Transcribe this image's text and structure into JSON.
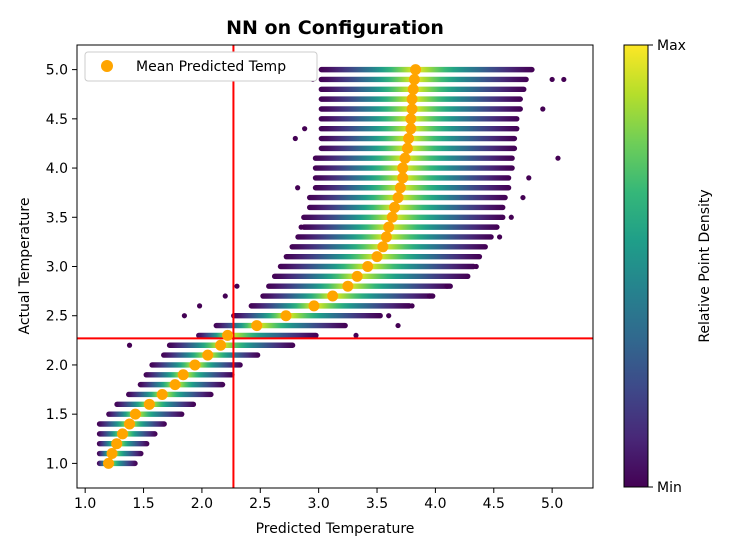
{
  "chart_data": {
    "type": "scatter",
    "title": "NN on Configuration",
    "xlabel": "Predicted Temperature",
    "ylabel": "Actual Temperature",
    "xlim": [
      0.93,
      5.35
    ],
    "ylim": [
      0.75,
      5.25
    ],
    "xticks": [
      1.0,
      1.5,
      2.0,
      2.5,
      3.0,
      3.5,
      4.0,
      4.5,
      5.0
    ],
    "yticks": [
      1.0,
      1.5,
      2.0,
      2.5,
      3.0,
      3.5,
      4.0,
      4.5,
      5.0
    ],
    "tick_format": "one-decimal",
    "grid": false,
    "legend": {
      "position": "top-left",
      "entries": [
        "Mean Predicted Temp"
      ]
    },
    "reference_lines": {
      "vertical_x": 2.27,
      "horizontal_y": 2.27,
      "color": "#ff0000"
    },
    "mean_series": {
      "name": "Mean Predicted Temp",
      "color": "#ffa500",
      "points": [
        [
          1.2,
          1.0
        ],
        [
          1.23,
          1.1
        ],
        [
          1.27,
          1.2
        ],
        [
          1.32,
          1.3
        ],
        [
          1.38,
          1.4
        ],
        [
          1.43,
          1.5
        ],
        [
          1.55,
          1.6
        ],
        [
          1.66,
          1.7
        ],
        [
          1.77,
          1.8
        ],
        [
          1.84,
          1.9
        ],
        [
          1.94,
          2.0
        ],
        [
          2.05,
          2.1
        ],
        [
          2.16,
          2.2
        ],
        [
          2.22,
          2.3
        ],
        [
          2.47,
          2.4
        ],
        [
          2.72,
          2.5
        ],
        [
          2.96,
          2.6
        ],
        [
          3.12,
          2.7
        ],
        [
          3.25,
          2.8
        ],
        [
          3.33,
          2.9
        ],
        [
          3.42,
          3.0
        ],
        [
          3.5,
          3.1
        ],
        [
          3.55,
          3.2
        ],
        [
          3.58,
          3.3
        ],
        [
          3.6,
          3.4
        ],
        [
          3.63,
          3.5
        ],
        [
          3.65,
          3.6
        ],
        [
          3.68,
          3.7
        ],
        [
          3.7,
          3.8
        ],
        [
          3.72,
          3.9
        ],
        [
          3.72,
          4.0
        ],
        [
          3.74,
          4.1
        ],
        [
          3.76,
          4.2
        ],
        [
          3.77,
          4.3
        ],
        [
          3.79,
          4.4
        ],
        [
          3.79,
          4.5
        ],
        [
          3.8,
          4.6
        ],
        [
          3.8,
          4.7
        ],
        [
          3.81,
          4.8
        ],
        [
          3.82,
          4.9
        ],
        [
          3.83,
          5.0
        ]
      ]
    },
    "density_bands": {
      "y_step": 0.1,
      "rows": [
        [
          1.0,
          1.1,
          1.45
        ],
        [
          1.1,
          1.1,
          1.5
        ],
        [
          1.2,
          1.1,
          1.55
        ],
        [
          1.3,
          1.1,
          1.62
        ],
        [
          1.4,
          1.1,
          1.7
        ],
        [
          1.5,
          1.18,
          1.85
        ],
        [
          1.6,
          1.25,
          1.95
        ],
        [
          1.7,
          1.35,
          2.1
        ],
        [
          1.8,
          1.45,
          2.2
        ],
        [
          1.9,
          1.5,
          2.28
        ],
        [
          2.0,
          1.55,
          2.35
        ],
        [
          2.1,
          1.65,
          2.5
        ],
        [
          2.2,
          1.7,
          2.8
        ],
        [
          2.3,
          1.95,
          3.0
        ],
        [
          2.4,
          2.1,
          3.25
        ],
        [
          2.5,
          2.25,
          3.55
        ],
        [
          2.6,
          2.4,
          3.8
        ],
        [
          2.7,
          2.5,
          4.0
        ],
        [
          2.8,
          2.55,
          4.15
        ],
        [
          2.9,
          2.6,
          4.3
        ],
        [
          3.0,
          2.65,
          4.35
        ],
        [
          3.1,
          2.7,
          4.4
        ],
        [
          3.2,
          2.75,
          4.45
        ],
        [
          3.3,
          2.8,
          4.5
        ],
        [
          3.4,
          2.85,
          4.55
        ],
        [
          3.5,
          2.85,
          4.6
        ],
        [
          3.6,
          2.9,
          4.6
        ],
        [
          3.7,
          2.9,
          4.62
        ],
        [
          3.8,
          2.95,
          4.65
        ],
        [
          3.9,
          2.95,
          4.65
        ],
        [
          4.0,
          2.95,
          4.68
        ],
        [
          4.1,
          2.95,
          4.68
        ],
        [
          4.2,
          3.0,
          4.7
        ],
        [
          4.3,
          3.0,
          4.7
        ],
        [
          4.4,
          3.0,
          4.72
        ],
        [
          4.5,
          3.0,
          4.72
        ],
        [
          4.6,
          3.0,
          4.75
        ],
        [
          4.7,
          3.0,
          4.75
        ],
        [
          4.8,
          3.0,
          4.78
        ],
        [
          4.9,
          3.0,
          4.8
        ],
        [
          5.0,
          3.0,
          4.85
        ]
      ]
    },
    "outlier_points": [
      [
        1.38,
        2.2
      ],
      [
        1.85,
        2.5
      ],
      [
        1.98,
        2.6
      ],
      [
        2.3,
        2.8
      ],
      [
        2.2,
        2.7
      ],
      [
        3.32,
        2.3
      ],
      [
        3.68,
        2.4
      ],
      [
        3.6,
        2.5
      ],
      [
        3.8,
        2.6
      ],
      [
        3.95,
        2.7
      ],
      [
        4.1,
        2.8
      ],
      [
        4.35,
        3.0
      ],
      [
        4.55,
        3.3
      ],
      [
        4.65,
        3.5
      ],
      [
        4.75,
        3.7
      ],
      [
        4.8,
        3.9
      ],
      [
        5.05,
        4.1
      ],
      [
        4.92,
        4.6
      ],
      [
        5.0,
        4.9
      ],
      [
        5.1,
        4.9
      ],
      [
        2.85,
        3.4
      ],
      [
        2.82,
        3.8
      ],
      [
        2.8,
        4.3
      ],
      [
        2.88,
        4.4
      ],
      [
        2.95,
        4.9
      ],
      [
        2.92,
        5.0
      ]
    ],
    "colorbar": {
      "label": "Relative Point Density",
      "tick_max": "Max",
      "tick_min": "Min",
      "colormap": "viridis",
      "stops": [
        "#440154",
        "#482878",
        "#3e4989",
        "#31688e",
        "#26828e",
        "#1f9e89",
        "#35b779",
        "#6ece58",
        "#b5de2b",
        "#fde725"
      ]
    }
  }
}
